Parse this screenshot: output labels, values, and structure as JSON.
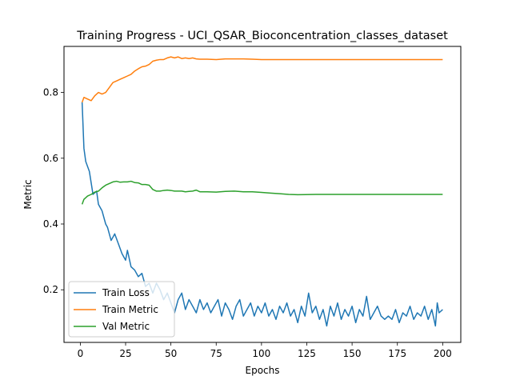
{
  "chart_data": {
    "type": "line",
    "title": "Training Progress - UCI_QSAR_Bioconcentration_classes_dataset",
    "xlabel": "Epochs",
    "ylabel": "Metric",
    "xlim": [
      -9,
      210
    ],
    "ylim": [
      0.04,
      0.94
    ],
    "xticks": [
      0,
      25,
      50,
      75,
      100,
      125,
      150,
      175,
      200
    ],
    "yticks": [
      0.2,
      0.4,
      0.6,
      0.8
    ],
    "xtick_labels": [
      "0",
      "25",
      "50",
      "75",
      "100",
      "125",
      "150",
      "175",
      "200"
    ],
    "ytick_labels": [
      "0.2",
      "0.4",
      "0.6",
      "0.8"
    ],
    "grid": false,
    "legend_position": "lower-left",
    "series": [
      {
        "name": "Train Loss",
        "color": "#1f77b4",
        "points": [
          [
            1,
            0.77
          ],
          [
            2,
            0.63
          ],
          [
            3,
            0.59
          ],
          [
            5,
            0.56
          ],
          [
            7,
            0.49
          ],
          [
            9,
            0.5
          ],
          [
            10,
            0.46
          ],
          [
            12,
            0.44
          ],
          [
            14,
            0.4
          ],
          [
            15,
            0.39
          ],
          [
            17,
            0.35
          ],
          [
            19,
            0.37
          ],
          [
            21,
            0.34
          ],
          [
            23,
            0.31
          ],
          [
            25,
            0.29
          ],
          [
            26,
            0.32
          ],
          [
            28,
            0.27
          ],
          [
            30,
            0.26
          ],
          [
            32,
            0.24
          ],
          [
            34,
            0.25
          ],
          [
            36,
            0.21
          ],
          [
            38,
            0.22
          ],
          [
            40,
            0.19
          ],
          [
            42,
            0.22
          ],
          [
            44,
            0.2
          ],
          [
            46,
            0.17
          ],
          [
            48,
            0.19
          ],
          [
            50,
            0.16
          ],
          [
            52,
            0.13
          ],
          [
            54,
            0.17
          ],
          [
            56,
            0.19
          ],
          [
            58,
            0.14
          ],
          [
            60,
            0.17
          ],
          [
            62,
            0.15
          ],
          [
            64,
            0.13
          ],
          [
            66,
            0.17
          ],
          [
            68,
            0.14
          ],
          [
            70,
            0.16
          ],
          [
            72,
            0.13
          ],
          [
            74,
            0.15
          ],
          [
            76,
            0.17
          ],
          [
            78,
            0.12
          ],
          [
            80,
            0.16
          ],
          [
            82,
            0.14
          ],
          [
            84,
            0.11
          ],
          [
            86,
            0.15
          ],
          [
            88,
            0.17
          ],
          [
            90,
            0.12
          ],
          [
            92,
            0.14
          ],
          [
            94,
            0.16
          ],
          [
            96,
            0.12
          ],
          [
            98,
            0.15
          ],
          [
            100,
            0.13
          ],
          [
            102,
            0.16
          ],
          [
            104,
            0.12
          ],
          [
            106,
            0.14
          ],
          [
            108,
            0.11
          ],
          [
            110,
            0.15
          ],
          [
            112,
            0.13
          ],
          [
            114,
            0.16
          ],
          [
            116,
            0.12
          ],
          [
            118,
            0.14
          ],
          [
            120,
            0.1
          ],
          [
            122,
            0.15
          ],
          [
            124,
            0.12
          ],
          [
            126,
            0.19
          ],
          [
            128,
            0.13
          ],
          [
            130,
            0.15
          ],
          [
            132,
            0.11
          ],
          [
            134,
            0.14
          ],
          [
            136,
            0.09
          ],
          [
            138,
            0.15
          ],
          [
            140,
            0.12
          ],
          [
            142,
            0.16
          ],
          [
            144,
            0.11
          ],
          [
            146,
            0.14
          ],
          [
            148,
            0.12
          ],
          [
            150,
            0.15
          ],
          [
            152,
            0.1
          ],
          [
            154,
            0.14
          ],
          [
            156,
            0.12
          ],
          [
            158,
            0.18
          ],
          [
            160,
            0.11
          ],
          [
            162,
            0.13
          ],
          [
            164,
            0.15
          ],
          [
            166,
            0.12
          ],
          [
            168,
            0.11
          ],
          [
            170,
            0.12
          ],
          [
            172,
            0.11
          ],
          [
            174,
            0.14
          ],
          [
            176,
            0.1
          ],
          [
            178,
            0.13
          ],
          [
            180,
            0.12
          ],
          [
            182,
            0.15
          ],
          [
            184,
            0.11
          ],
          [
            186,
            0.13
          ],
          [
            188,
            0.12
          ],
          [
            190,
            0.15
          ],
          [
            192,
            0.11
          ],
          [
            194,
            0.14
          ],
          [
            196,
            0.09
          ],
          [
            197,
            0.16
          ],
          [
            198,
            0.13
          ],
          [
            200,
            0.14
          ]
        ]
      },
      {
        "name": "Train Metric",
        "color": "#ff7f0e",
        "points": [
          [
            1,
            0.77
          ],
          [
            2,
            0.785
          ],
          [
            4,
            0.78
          ],
          [
            6,
            0.775
          ],
          [
            8,
            0.79
          ],
          [
            10,
            0.8
          ],
          [
            12,
            0.795
          ],
          [
            14,
            0.8
          ],
          [
            16,
            0.815
          ],
          [
            18,
            0.83
          ],
          [
            20,
            0.835
          ],
          [
            22,
            0.84
          ],
          [
            24,
            0.845
          ],
          [
            26,
            0.85
          ],
          [
            28,
            0.855
          ],
          [
            30,
            0.865
          ],
          [
            32,
            0.872
          ],
          [
            34,
            0.878
          ],
          [
            36,
            0.88
          ],
          [
            38,
            0.885
          ],
          [
            40,
            0.895
          ],
          [
            42,
            0.898
          ],
          [
            44,
            0.9
          ],
          [
            46,
            0.9
          ],
          [
            48,
            0.905
          ],
          [
            50,
            0.908
          ],
          [
            52,
            0.905
          ],
          [
            54,
            0.908
          ],
          [
            56,
            0.903
          ],
          [
            58,
            0.905
          ],
          [
            60,
            0.903
          ],
          [
            62,
            0.905
          ],
          [
            64,
            0.902
          ],
          [
            66,
            0.901
          ],
          [
            70,
            0.901
          ],
          [
            75,
            0.9
          ],
          [
            80,
            0.902
          ],
          [
            85,
            0.902
          ],
          [
            90,
            0.902
          ],
          [
            95,
            0.901
          ],
          [
            100,
            0.9
          ],
          [
            120,
            0.9
          ],
          [
            150,
            0.9
          ],
          [
            175,
            0.9
          ],
          [
            200,
            0.9
          ]
        ]
      },
      {
        "name": "Val Metric",
        "color": "#2ca02c",
        "points": [
          [
            1,
            0.46
          ],
          [
            2,
            0.475
          ],
          [
            4,
            0.485
          ],
          [
            6,
            0.49
          ],
          [
            8,
            0.497
          ],
          [
            10,
            0.5
          ],
          [
            12,
            0.51
          ],
          [
            14,
            0.518
          ],
          [
            16,
            0.523
          ],
          [
            18,
            0.528
          ],
          [
            20,
            0.53
          ],
          [
            22,
            0.527
          ],
          [
            24,
            0.528
          ],
          [
            26,
            0.528
          ],
          [
            28,
            0.53
          ],
          [
            30,
            0.526
          ],
          [
            32,
            0.525
          ],
          [
            34,
            0.52
          ],
          [
            36,
            0.52
          ],
          [
            38,
            0.518
          ],
          [
            40,
            0.505
          ],
          [
            42,
            0.5
          ],
          [
            44,
            0.5
          ],
          [
            46,
            0.502
          ],
          [
            48,
            0.503
          ],
          [
            50,
            0.502
          ],
          [
            52,
            0.5
          ],
          [
            54,
            0.5
          ],
          [
            56,
            0.5
          ],
          [
            58,
            0.498
          ],
          [
            60,
            0.499
          ],
          [
            62,
            0.5
          ],
          [
            64,
            0.503
          ],
          [
            66,
            0.498
          ],
          [
            70,
            0.498
          ],
          [
            75,
            0.497
          ],
          [
            80,
            0.499
          ],
          [
            85,
            0.5
          ],
          [
            90,
            0.498
          ],
          [
            95,
            0.498
          ],
          [
            100,
            0.496
          ],
          [
            105,
            0.494
          ],
          [
            110,
            0.492
          ],
          [
            115,
            0.49
          ],
          [
            120,
            0.489
          ],
          [
            130,
            0.49
          ],
          [
            140,
            0.49
          ],
          [
            150,
            0.49
          ],
          [
            175,
            0.49
          ],
          [
            200,
            0.49
          ]
        ]
      }
    ]
  }
}
